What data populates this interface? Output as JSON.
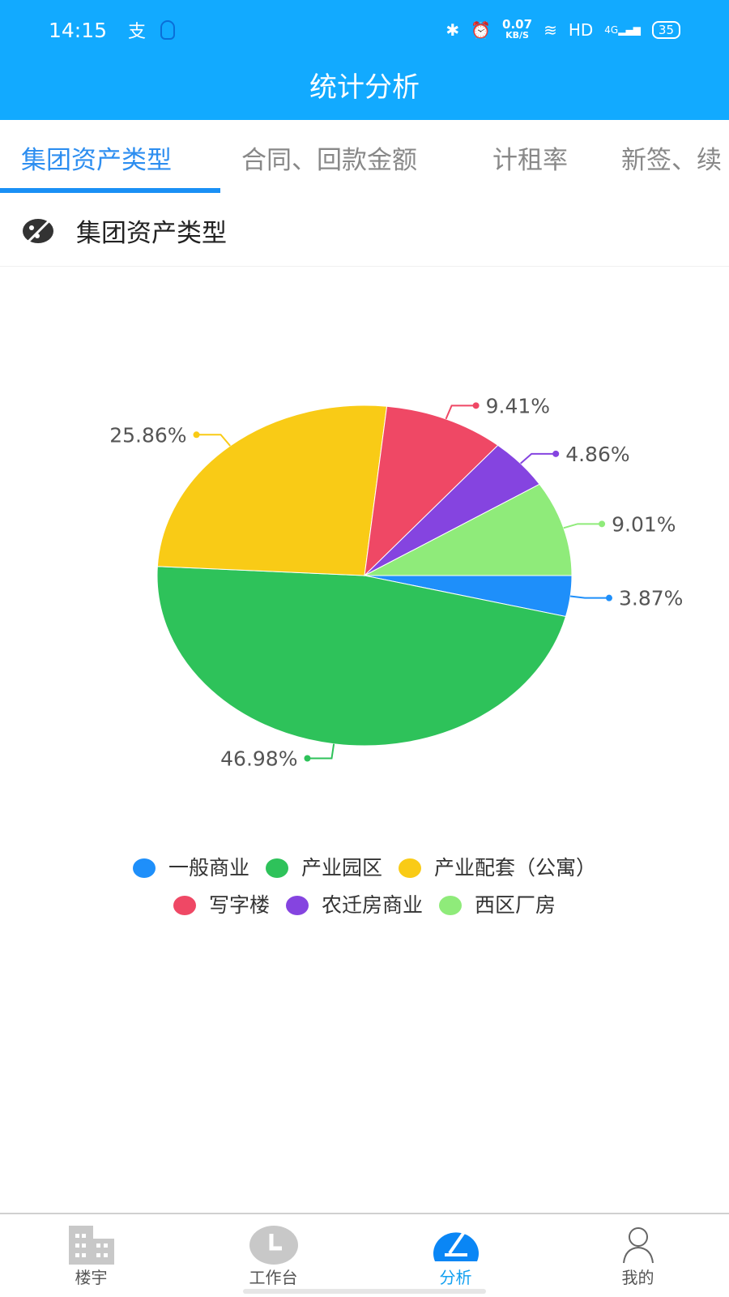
{
  "status_bar": {
    "time": "14:15",
    "net_speed": "0.07",
    "net_unit": "KB/S",
    "hd": "HD",
    "signal": "4G",
    "battery": "35"
  },
  "header": {
    "title": "统计分析"
  },
  "tabs": [
    {
      "label": "集团资产类型",
      "active": true
    },
    {
      "label": "合同、回款金额"
    },
    {
      "label": "计租率"
    },
    {
      "label": "新签、续"
    }
  ],
  "section": {
    "title": "集团资产类型",
    "icon": "palette-icon"
  },
  "chart_data": {
    "type": "pie",
    "categories": [
      "一般商业",
      "产业园区",
      "产业配套（公寓）",
      "写字楼",
      "农迁房商业",
      "西区厂房"
    ],
    "values": [
      3.87,
      46.98,
      25.86,
      9.41,
      4.86,
      9.01
    ],
    "labels": [
      "3.87%",
      "46.98%",
      "25.86%",
      "9.41%",
      "4.86%",
      "9.01%"
    ],
    "colors": [
      "#1e8ffa",
      "#2ec25a",
      "#f9cb16",
      "#ef4865",
      "#8544e0",
      "#8feb7a"
    ],
    "legend_position": "bottom"
  },
  "bottom_nav": [
    {
      "label": "楼宇",
      "icon": "building-icon"
    },
    {
      "label": "工作台",
      "icon": "clock-icon"
    },
    {
      "label": "分析",
      "icon": "gauge-icon",
      "active": true
    },
    {
      "label": "我的",
      "icon": "user-icon"
    }
  ],
  "colors": {
    "primary": "#12aaff",
    "tab_active": "#2d8ef0"
  }
}
